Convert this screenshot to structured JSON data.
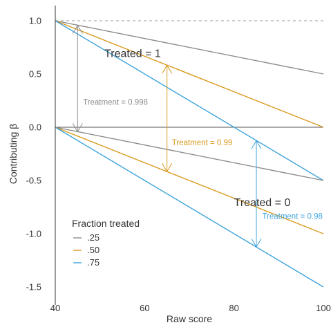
{
  "chart_data": {
    "type": "line",
    "xlabel": "Raw score",
    "ylabel": "Contributing β",
    "xlim": [
      40,
      100
    ],
    "ylim": [
      -1.5,
      1.0
    ],
    "x_ticks": [
      40,
      60,
      80,
      100
    ],
    "x_tick_labels": [
      "40",
      "60",
      "80",
      "100"
    ],
    "y_ticks": [
      1.0,
      0.5,
      0.0,
      -0.5,
      -1.0,
      -1.5
    ],
    "y_tick_labels": [
      "1.0",
      "0.5",
      "0.0",
      "-0.5",
      "-1.0",
      "-1.5"
    ],
    "reference_lines": [
      {
        "y": 1.0,
        "style": "dashed",
        "color": "#999999"
      },
      {
        "y": 0.0,
        "style": "solid",
        "color": "#555555"
      }
    ],
    "x": [
      40,
      100
    ],
    "series": [
      {
        "name": ".25",
        "group": "Treated = 1",
        "color": "#8c8c8c",
        "values": [
          1.0,
          0.5
        ]
      },
      {
        "name": ".50",
        "group": "Treated = 1",
        "color": "#d99a1e",
        "values": [
          1.0,
          0.0
        ]
      },
      {
        "name": ".75",
        "group": "Treated = 1",
        "color": "#3ca3dc",
        "values": [
          1.0,
          -0.5
        ]
      },
      {
        "name": ".25",
        "group": "Treated = 0",
        "color": "#8c8c8c",
        "values": [
          0.0,
          -0.5
        ]
      },
      {
        "name": ".50",
        "group": "Treated = 0",
        "color": "#d99a1e",
        "values": [
          0.0,
          -1.0
        ]
      },
      {
        "name": ".75",
        "group": "Treated = 0",
        "color": "#3ca3dc",
        "values": [
          0.0,
          -1.5
        ]
      }
    ],
    "arrows": [
      {
        "x": 45,
        "y_top": 0.958,
        "y_bottom": -0.042,
        "color": "#8c8c8c"
      },
      {
        "x": 65,
        "y_top": 0.583,
        "y_bottom": -0.417,
        "color": "#d99a1e"
      },
      {
        "x": 85,
        "y_top": -0.125,
        "y_bottom": -1.125,
        "color": "#3ca3dc"
      }
    ],
    "annotations": [
      {
        "text": "Treated = 1",
        "x": 51,
        "y": 0.66,
        "size": "big",
        "color": "#333333"
      },
      {
        "text": "Treated = 0",
        "x": 80,
        "y": -0.74,
        "size": "big",
        "color": "#333333"
      },
      {
        "text": "Treatment =  0.998",
        "x": 46.2,
        "y": 0.21,
        "size": "small",
        "color": "#8c8c8c"
      },
      {
        "text": "Treatment =  0.99",
        "x": 66.1,
        "y": -0.17,
        "size": "small",
        "color": "#d99a1e"
      },
      {
        "text": "Treatment =  0.98",
        "x": 86.3,
        "y": -0.86,
        "size": "small",
        "color": "#3ca3dc"
      }
    ],
    "legend": {
      "title": "Fraction treated",
      "position": "bottom-left",
      "entries": [
        {
          "label": ".25",
          "color": "#8c8c8c"
        },
        {
          "label": ".50",
          "color": "#d99a1e"
        },
        {
          "label": ".75",
          "color": "#3ca3dc"
        }
      ]
    },
    "grid": false
  }
}
